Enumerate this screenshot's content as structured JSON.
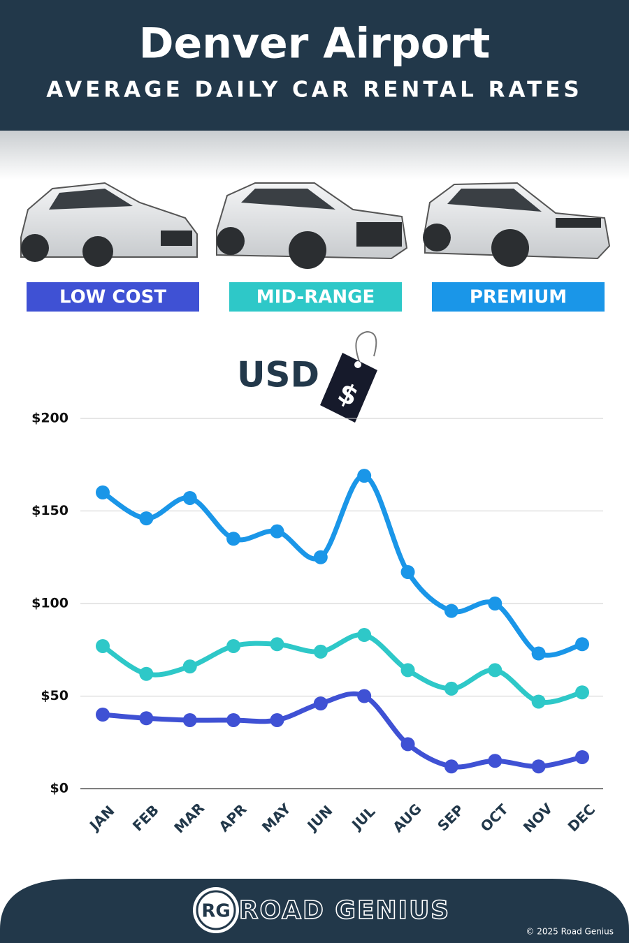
{
  "chart_data": {
    "type": "line",
    "title": "Denver Airport",
    "subtitle": "AVERAGE DAILY CAR RENTAL RATES",
    "annotation": "USD",
    "currency_symbol": "$",
    "categories": [
      "JAN",
      "FEB",
      "MAR",
      "APR",
      "MAY",
      "JUN",
      "JUL",
      "AUG",
      "SEP",
      "OCT",
      "NOV",
      "DEC"
    ],
    "series": [
      {
        "name": "LOW COST",
        "color": "#3f51d4",
        "values": [
          40,
          38,
          37,
          37,
          37,
          46,
          50,
          24,
          12,
          15,
          12,
          17
        ]
      },
      {
        "name": "MID-RANGE",
        "color": "#2ec8c8",
        "values": [
          77,
          62,
          66,
          77,
          78,
          74,
          83,
          64,
          54,
          64,
          47,
          52
        ]
      },
      {
        "name": "PREMIUM",
        "color": "#1a96e8",
        "values": [
          160,
          146,
          157,
          135,
          139,
          125,
          169,
          117,
          96,
          100,
          73,
          78
        ]
      }
    ],
    "ylim": [
      0,
      200
    ],
    "yticks": [
      {
        "value": 0,
        "label": "$0"
      },
      {
        "value": 50,
        "label": "$50"
      },
      {
        "value": 100,
        "label": "$100"
      },
      {
        "value": 150,
        "label": "$150"
      },
      {
        "value": 200,
        "label": "$200"
      }
    ],
    "grid": true
  },
  "footer": {
    "logo": "RG",
    "brand": "ROAD GENIUS",
    "copyright": "© 2025 Road Genius"
  }
}
